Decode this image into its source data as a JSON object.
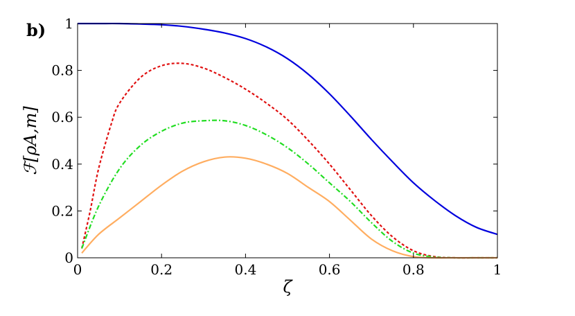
{
  "panel_label": "b)",
  "chart_data": {
    "type": "line",
    "xlabel": "ζ",
    "ylabel": "ℱ[ρA,m]",
    "xlim": [
      0,
      1
    ],
    "ylim": [
      0,
      1
    ],
    "xticks": [
      "0",
      "0.2",
      "0.4",
      "0.6",
      "0.8",
      "1"
    ],
    "yticks": [
      "0",
      "0.2",
      "0.4",
      "0.6",
      "0.8",
      "1"
    ],
    "grid": false,
    "series": [
      {
        "color": "#0000dd",
        "style": "solid",
        "x": [
          0.0,
          0.05,
          0.1,
          0.15,
          0.2,
          0.25,
          0.3,
          0.35,
          0.4,
          0.45,
          0.5,
          0.55,
          0.6,
          0.65,
          0.7,
          0.75,
          0.8,
          0.85,
          0.9,
          0.95,
          1.0
        ],
        "values": [
          1.0,
          1.0,
          1.0,
          0.998,
          0.995,
          0.988,
          0.976,
          0.96,
          0.936,
          0.9,
          0.85,
          0.783,
          0.7,
          0.605,
          0.505,
          0.41,
          0.32,
          0.245,
          0.18,
          0.13,
          0.1
        ]
      },
      {
        "color": "#e01010",
        "style": "dotted",
        "x": [
          0.01,
          0.03,
          0.05,
          0.08,
          0.1,
          0.15,
          0.2,
          0.25,
          0.3,
          0.35,
          0.4,
          0.45,
          0.5,
          0.55,
          0.6,
          0.65,
          0.7,
          0.75,
          0.8,
          0.85,
          0.9,
          0.95,
          1.0
        ],
        "values": [
          0.04,
          0.2,
          0.38,
          0.57,
          0.66,
          0.77,
          0.82,
          0.83,
          0.81,
          0.77,
          0.72,
          0.66,
          0.59,
          0.5,
          0.4,
          0.29,
          0.18,
          0.09,
          0.03,
          0.005,
          0.0,
          0.0,
          0.0
        ]
      },
      {
        "color": "#22dd22",
        "style": "dashdot",
        "x": [
          0.01,
          0.05,
          0.1,
          0.15,
          0.2,
          0.25,
          0.3,
          0.35,
          0.4,
          0.45,
          0.5,
          0.55,
          0.6,
          0.65,
          0.7,
          0.75,
          0.8,
          0.85,
          0.9,
          0.95,
          1.0
        ],
        "values": [
          0.04,
          0.22,
          0.38,
          0.48,
          0.54,
          0.575,
          0.585,
          0.585,
          0.565,
          0.525,
          0.47,
          0.4,
          0.32,
          0.24,
          0.15,
          0.07,
          0.02,
          0.003,
          0.0,
          0.0,
          0.0
        ]
      },
      {
        "color": "#ffad60",
        "style": "solid",
        "x": [
          0.01,
          0.05,
          0.1,
          0.15,
          0.2,
          0.25,
          0.3,
          0.35,
          0.4,
          0.45,
          0.5,
          0.55,
          0.6,
          0.65,
          0.7,
          0.75,
          0.8,
          0.85,
          0.9,
          0.95,
          1.0
        ],
        "values": [
          0.02,
          0.1,
          0.17,
          0.24,
          0.31,
          0.37,
          0.41,
          0.43,
          0.425,
          0.4,
          0.36,
          0.3,
          0.24,
          0.16,
          0.08,
          0.03,
          0.005,
          0.0,
          0.0,
          0.0,
          0.0
        ]
      }
    ]
  }
}
